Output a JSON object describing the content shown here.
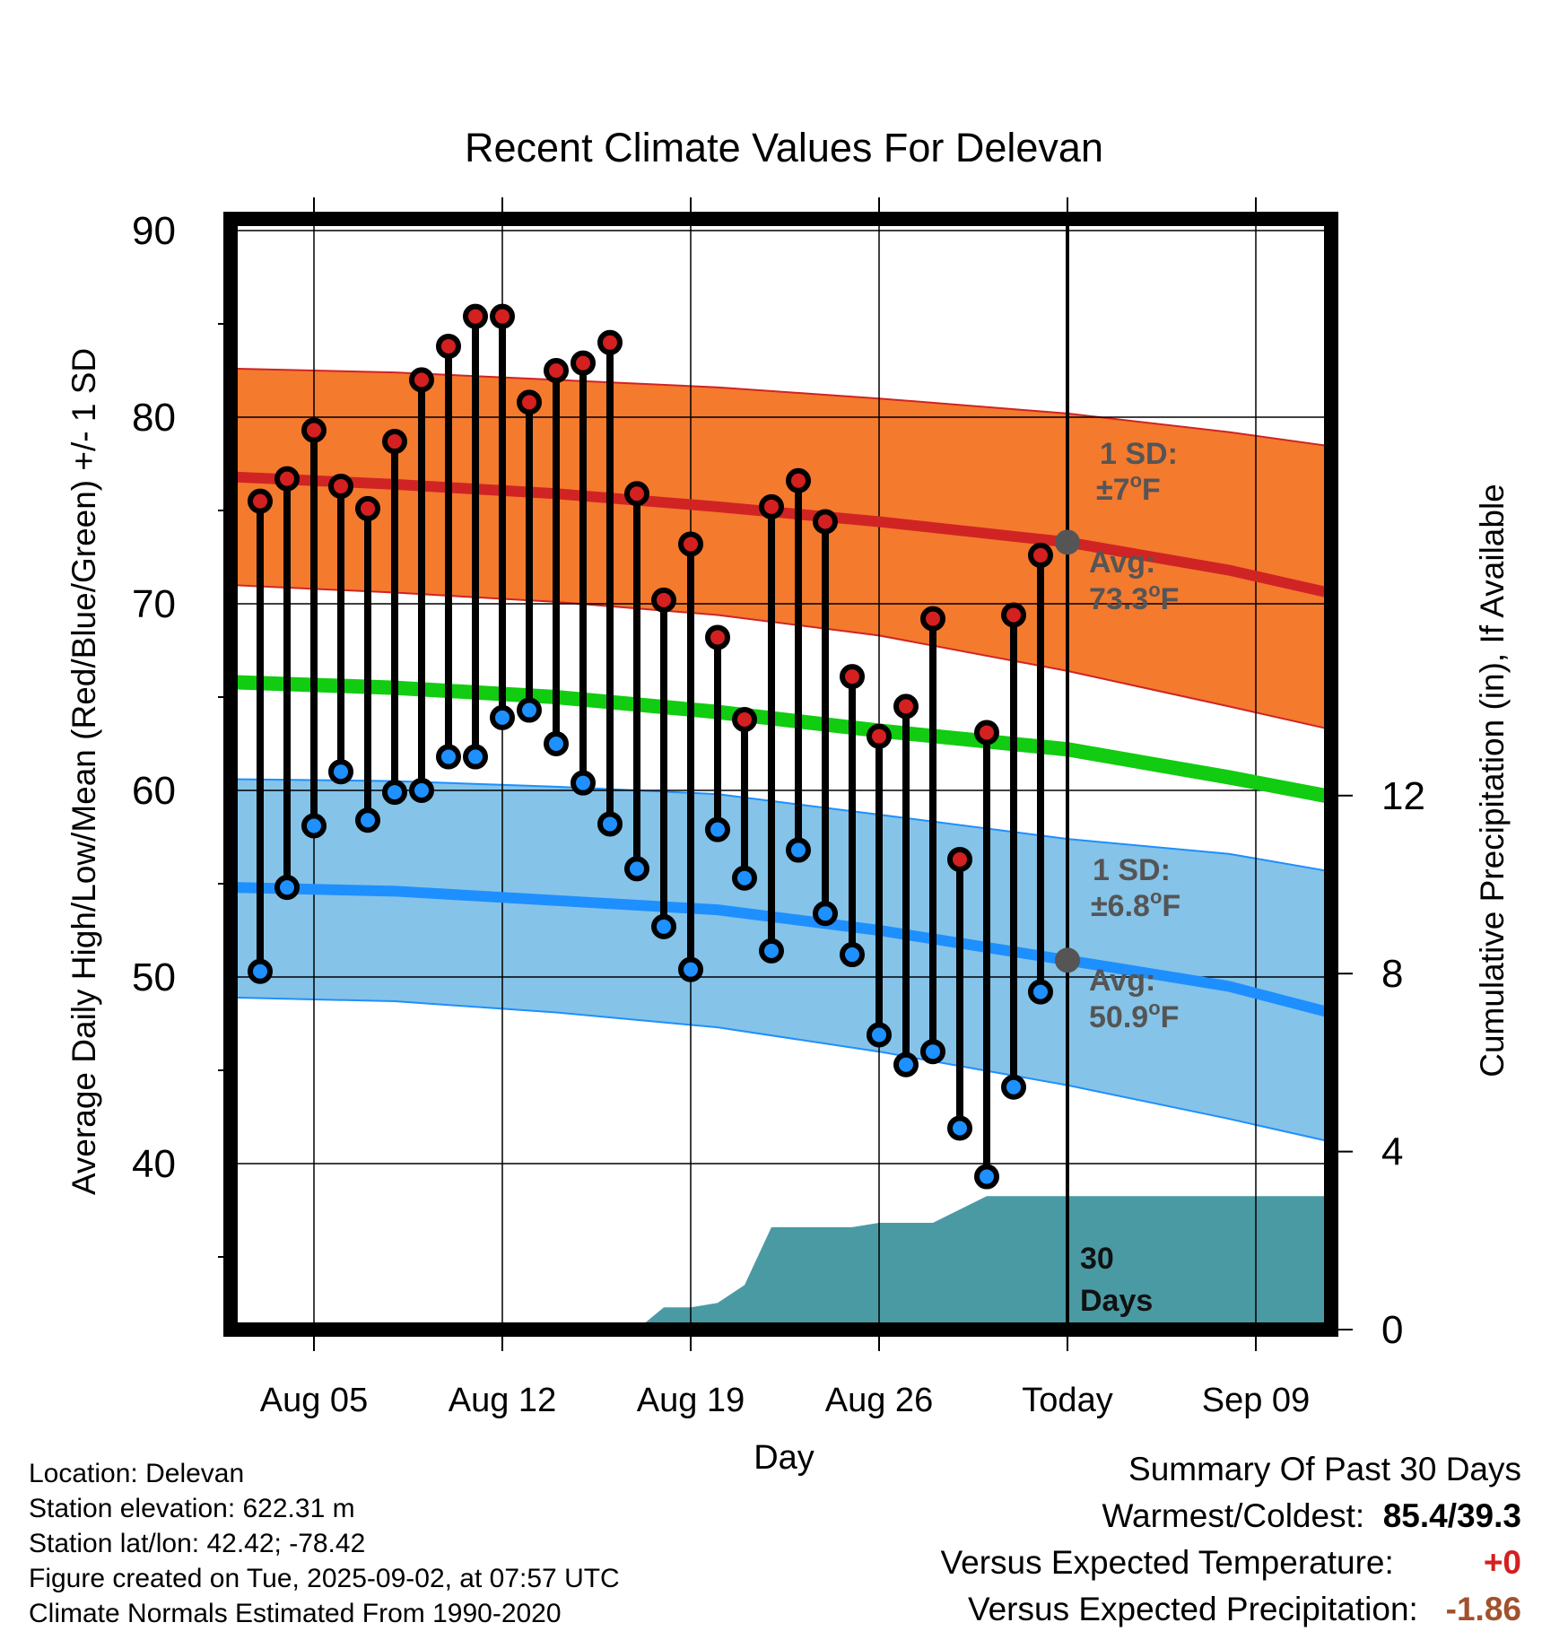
{
  "chart_data": {
    "type": "line",
    "title": "Recent Climate Values For Delevan",
    "xlabel": "Day",
    "ylabel": "Average Daily High/Low/Mean (Red/Blue/Green) +/- 1 SD",
    "y2label": "Cumulative Precipitation (in), If Available",
    "ylim": [
      31,
      90
    ],
    "y2lim": [
      0,
      12
    ],
    "yticks": [
      40,
      50,
      60,
      70,
      80,
      90
    ],
    "y2ticks": [
      0,
      4,
      8,
      12
    ],
    "x_dates": [
      "Aug 03",
      "Aug 04",
      "Aug 05",
      "Aug 06",
      "Aug 07",
      "Aug 08",
      "Aug 09",
      "Aug 10",
      "Aug 11",
      "Aug 12",
      "Aug 13",
      "Aug 14",
      "Aug 15",
      "Aug 16",
      "Aug 17",
      "Aug 18",
      "Aug 19",
      "Aug 20",
      "Aug 21",
      "Aug 22",
      "Aug 23",
      "Aug 24",
      "Aug 25",
      "Aug 26",
      "Aug 27",
      "Aug 28",
      "Aug 29",
      "Aug 30",
      "Aug 31",
      "Sep 01"
    ],
    "x_ticks": [
      {
        "date": "Aug 05",
        "label": "Aug 05"
      },
      {
        "date": "Aug 12",
        "label": "Aug 12"
      },
      {
        "date": "Aug 19",
        "label": "Aug 19"
      },
      {
        "date": "Aug 26",
        "label": "Aug 26"
      },
      {
        "date": "Sep 02",
        "label": "Today"
      },
      {
        "date": "Sep 09",
        "label": "Sep 09"
      }
    ],
    "xlim": [
      "Aug 02",
      "Sep 12"
    ],
    "today": "Sep 02",
    "series": [
      {
        "name": "High",
        "color": "#d42020",
        "values": [
          75.5,
          76.7,
          79.3,
          76.3,
          75.1,
          78.7,
          82.0,
          83.8,
          85.4,
          85.4,
          80.8,
          82.5,
          82.9,
          84.0,
          75.9,
          70.2,
          73.2,
          68.2,
          63.8,
          75.2,
          76.6,
          74.4,
          66.1,
          62.9,
          64.5,
          69.2,
          56.3,
          63.1,
          69.4,
          72.6
        ]
      },
      {
        "name": "Low",
        "color": "#1e90ff",
        "values": [
          50.3,
          54.8,
          58.1,
          61.0,
          58.4,
          59.9,
          60.0,
          61.8,
          61.8,
          63.9,
          64.3,
          62.5,
          60.4,
          58.2,
          55.8,
          52.7,
          50.4,
          57.9,
          55.3,
          51.4,
          56.8,
          53.4,
          51.2,
          46.9,
          45.3,
          46.0,
          41.9,
          39.3,
          44.1,
          49.2
        ]
      }
    ],
    "normals": {
      "dates": [
        "Aug 02",
        "Aug 08",
        "Aug 14",
        "Aug 20",
        "Aug 26",
        "Sep 02",
        "Sep 08",
        "Sep 12"
      ],
      "high_avg": [
        76.8,
        76.4,
        75.9,
        75.2,
        74.4,
        73.3,
        71.8,
        70.5
      ],
      "high_upper": [
        82.6,
        82.4,
        82.0,
        81.6,
        81.0,
        80.2,
        79.2,
        78.4
      ],
      "high_lower": [
        71.0,
        70.6,
        70.1,
        69.4,
        68.3,
        66.4,
        64.5,
        63.2
      ],
      "mean_avg": [
        65.8,
        65.5,
        65.0,
        64.2,
        63.2,
        62.2,
        60.7,
        59.6
      ],
      "low_avg": [
        54.8,
        54.6,
        54.1,
        53.6,
        52.5,
        50.9,
        49.5,
        48.0
      ],
      "low_upper": [
        60.6,
        60.5,
        60.2,
        59.8,
        58.7,
        57.4,
        56.6,
        55.6
      ],
      "low_lower": [
        48.9,
        48.7,
        48.1,
        47.3,
        46.0,
        44.2,
        42.4,
        41.1
      ],
      "colors": {
        "high_band": "#f47a2e",
        "high_line": "#d02424",
        "mean_line": "#11cc11",
        "low_band": "#85c3e8",
        "low_line": "#1e8fff"
      }
    },
    "precip": {
      "color": "#4a9aa4",
      "dates": [
        "Aug 17",
        "Aug 18",
        "Aug 19",
        "Aug 20",
        "Aug 21",
        "Aug 22",
        "Aug 23",
        "Aug 24",
        "Aug 25",
        "Aug 26",
        "Aug 27",
        "Aug 28",
        "Aug 29",
        "Aug 30",
        "Aug 31",
        "Sep 01",
        "Sep 12"
      ],
      "values": [
        0.0,
        0.5,
        0.5,
        0.6,
        1.0,
        2.3,
        2.3,
        2.3,
        2.3,
        2.4,
        2.4,
        2.4,
        2.7,
        3.0,
        3.0,
        3.0,
        3.0
      ]
    },
    "annotations": {
      "high_sd": "1 SD:",
      "high_sd_value": "±7",
      "high_avg_label": "Avg:",
      "high_avg_value": "73.3",
      "low_sd": "1 SD:",
      "low_sd_value": "±6.8",
      "low_avg_label": "Avg:",
      "low_avg_value": "50.9",
      "degree_unit": "o",
      "temp_unit": "F",
      "precip_label_1": "30",
      "precip_label_2": "Days",
      "annotation_color": "#555555"
    }
  },
  "info": {
    "location": "Location: Delevan",
    "elevation": "Station elevation: 622.31 m",
    "latlon": "Station lat/lon: 42.42; -78.42",
    "created": "Figure created on Tue, 2025-09-02, at 07:57 UTC",
    "normals": "Climate Normals Estimated From 1990-2020"
  },
  "summary": {
    "title": "Summary Of Past 30 Days",
    "warm_cold_label": "Warmest/Coldest:",
    "warm_cold_value": "85.4/39.3",
    "temp_label": "Versus Expected Temperature:",
    "temp_value": "+0",
    "temp_color": "#d42020",
    "precip_label": "Versus Expected Precipitation:",
    "precip_value": "-1.86",
    "precip_color": "#a0522d"
  }
}
